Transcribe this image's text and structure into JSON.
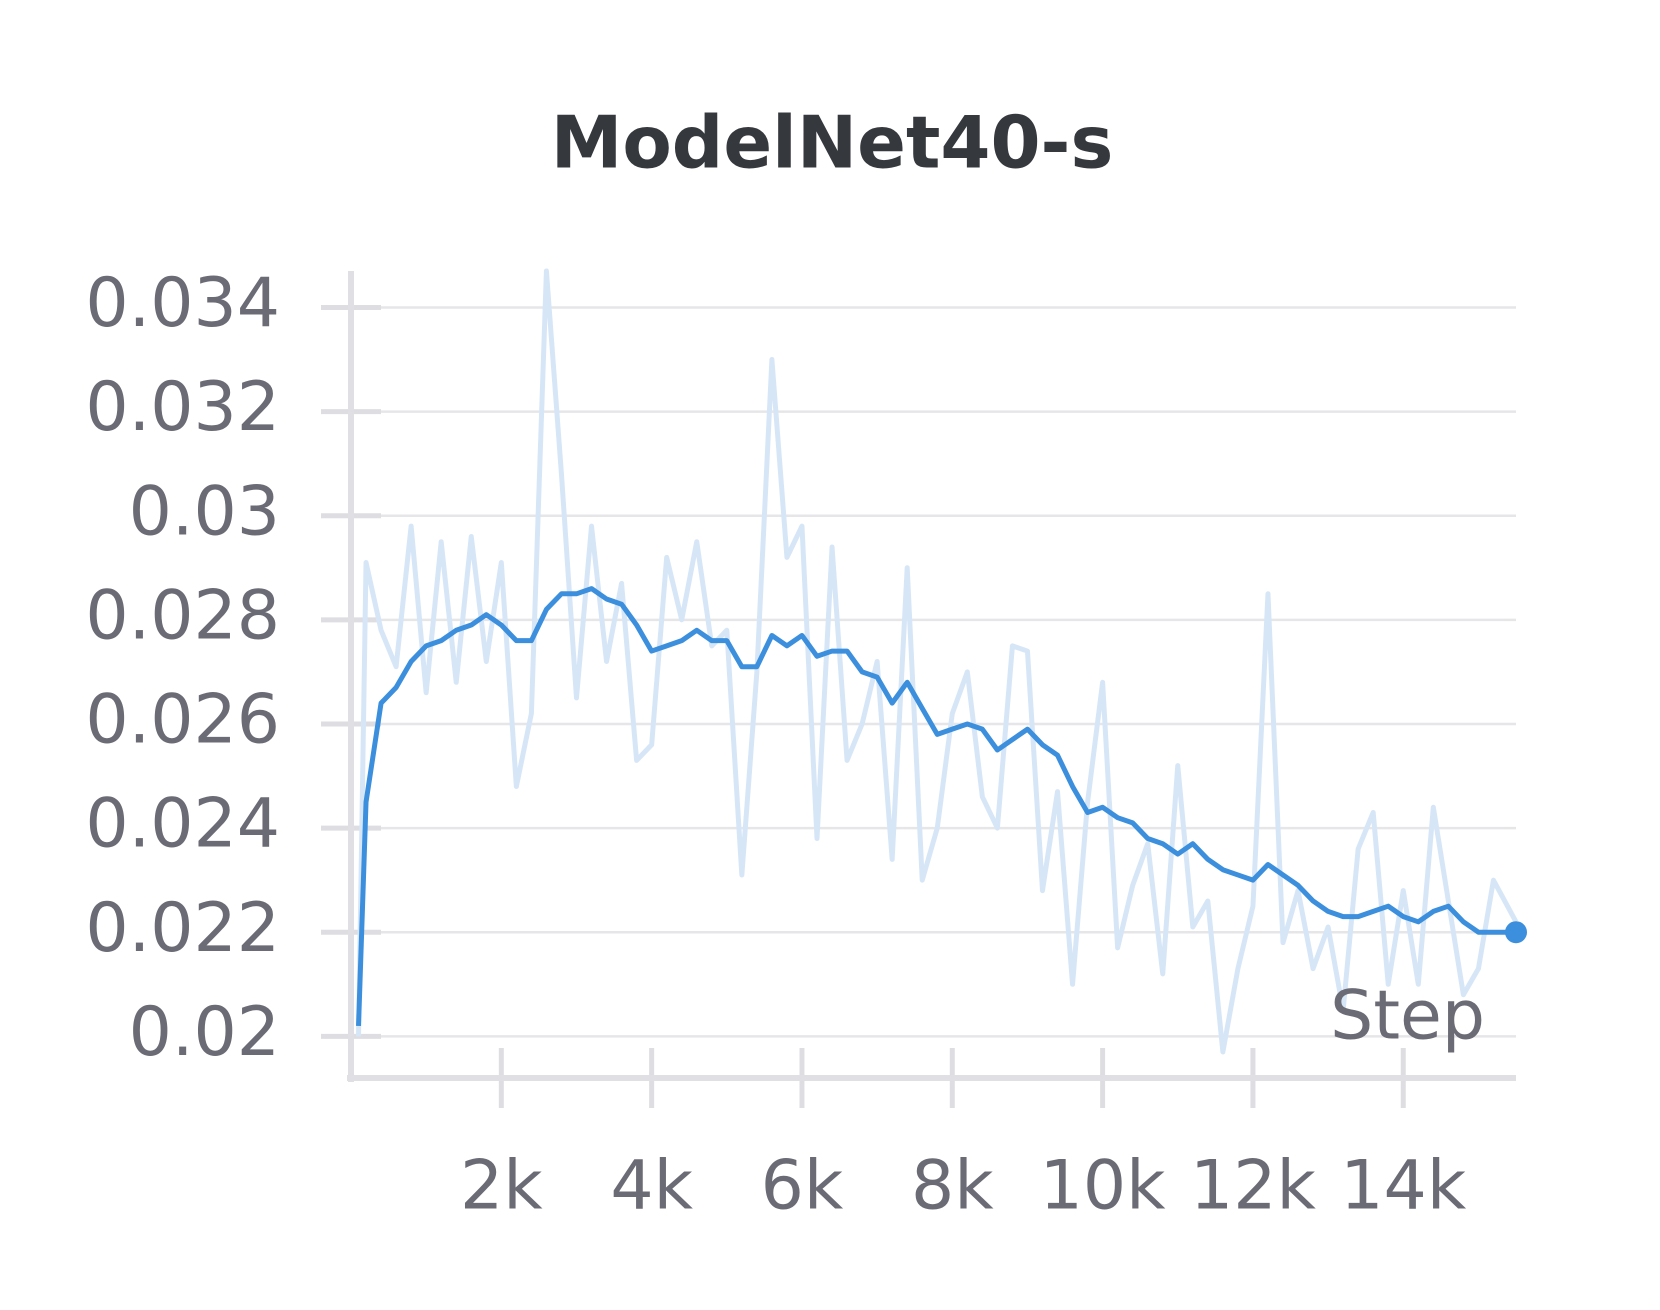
{
  "chart_data": {
    "type": "line",
    "title": "ModelNet40-s",
    "xlabel": "Step",
    "x": [
      100,
      200,
      400,
      600,
      800,
      1000,
      1200,
      1400,
      1600,
      1800,
      2000,
      2200,
      2400,
      2600,
      2800,
      3000,
      3200,
      3400,
      3600,
      3800,
      4000,
      4200,
      4400,
      4600,
      4800,
      5000,
      5200,
      5400,
      5600,
      5800,
      6000,
      6200,
      6400,
      6600,
      6800,
      7000,
      7200,
      7400,
      7600,
      7800,
      8000,
      8200,
      8400,
      8600,
      8800,
      9000,
      9200,
      9400,
      9600,
      9800,
      10000,
      10200,
      10400,
      10600,
      10800,
      11000,
      11200,
      11400,
      11600,
      11800,
      12000,
      12200,
      12400,
      12600,
      12800,
      13000,
      13200,
      13400,
      13600,
      13800,
      14000,
      14200,
      14400,
      14600,
      14800,
      15000,
      15200,
      15500
    ],
    "series": [
      {
        "color": "#d6e6f7",
        "values": [
          0.02,
          0.0291,
          0.0278,
          0.0271,
          0.0298,
          0.0266,
          0.0295,
          0.0268,
          0.0296,
          0.0272,
          0.0291,
          0.0248,
          0.0262,
          0.0347,
          0.0308,
          0.0265,
          0.0298,
          0.0272,
          0.0287,
          0.0253,
          0.0256,
          0.0292,
          0.028,
          0.0295,
          0.0275,
          0.0278,
          0.0231,
          0.027,
          0.033,
          0.0292,
          0.0298,
          0.0238,
          0.0294,
          0.0253,
          0.026,
          0.0272,
          0.0234,
          0.029,
          0.023,
          0.024,
          0.0262,
          0.027,
          0.0246,
          0.024,
          0.0275,
          0.0274,
          0.0228,
          0.0247,
          0.021,
          0.0245,
          0.0268,
          0.0217,
          0.0229,
          0.0237,
          0.0212,
          0.0252,
          0.0221,
          0.0226,
          0.0197,
          0.0213,
          0.0225,
          0.0285,
          0.0218,
          0.0228,
          0.0213,
          0.0221,
          0.0205,
          0.0236,
          0.0243,
          0.021,
          0.0228,
          0.021,
          0.0244,
          0.0226,
          0.0208,
          0.0213,
          0.023,
          0.0222
        ]
      },
      {
        "color": "#3c8fdd",
        "values": [
          0.0202,
          0.0245,
          0.0264,
          0.0267,
          0.0272,
          0.0275,
          0.0276,
          0.0278,
          0.0279,
          0.0281,
          0.0279,
          0.0276,
          0.0276,
          0.0282,
          0.0285,
          0.0285,
          0.0286,
          0.0284,
          0.0283,
          0.0279,
          0.0274,
          0.0275,
          0.0276,
          0.0278,
          0.0276,
          0.0276,
          0.0271,
          0.0271,
          0.0277,
          0.0275,
          0.0277,
          0.0273,
          0.0274,
          0.0274,
          0.027,
          0.0269,
          0.0264,
          0.0268,
          0.0263,
          0.0258,
          0.0259,
          0.026,
          0.0259,
          0.0255,
          0.0257,
          0.0259,
          0.0256,
          0.0254,
          0.0248,
          0.0243,
          0.0244,
          0.0242,
          0.0241,
          0.0238,
          0.0237,
          0.0235,
          0.0237,
          0.0234,
          0.0232,
          0.0231,
          0.023,
          0.0233,
          0.0231,
          0.0229,
          0.0226,
          0.0224,
          0.0223,
          0.0223,
          0.0224,
          0.0225,
          0.0223,
          0.0222,
          0.0224,
          0.0225,
          0.0222,
          0.022,
          0.022,
          0.022
        ]
      }
    ],
    "xlim": [
      0,
      15500
    ],
    "ylim": [
      0.0192,
      0.0347
    ],
    "xticks": [
      {
        "value": 2000,
        "label": "2k"
      },
      {
        "value": 4000,
        "label": "4k"
      },
      {
        "value": 6000,
        "label": "6k"
      },
      {
        "value": 8000,
        "label": "8k"
      },
      {
        "value": 10000,
        "label": "10k"
      },
      {
        "value": 12000,
        "label": "12k"
      },
      {
        "value": 14000,
        "label": "14k"
      }
    ],
    "yticks": [
      0.02,
      0.022,
      0.024,
      0.026,
      0.028,
      0.03,
      0.032,
      0.034
    ],
    "grid": true
  }
}
